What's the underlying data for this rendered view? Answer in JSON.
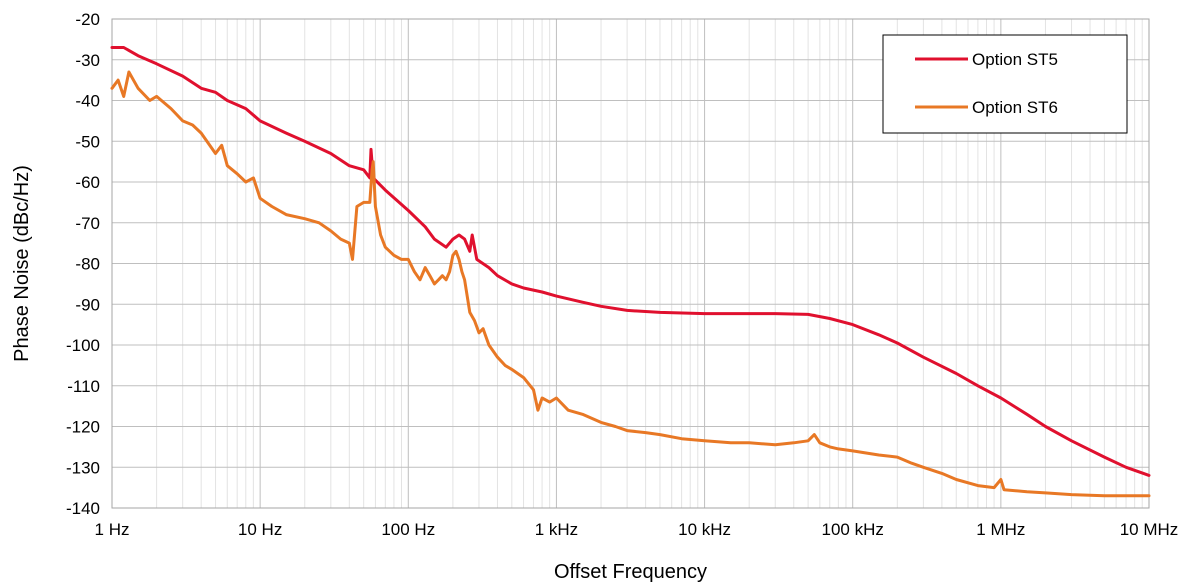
{
  "chart_data": {
    "type": "line",
    "title": "",
    "xlabel": "Offset Frequency",
    "ylabel": "Phase Noise (dBc/Hz)",
    "x_scale": "log",
    "xlim": [
      1,
      10000000
    ],
    "ylim": [
      -140,
      -20
    ],
    "x_ticks": [
      {
        "value": 1,
        "label": "1 Hz"
      },
      {
        "value": 10,
        "label": "10 Hz"
      },
      {
        "value": 100,
        "label": "100 Hz"
      },
      {
        "value": 1000,
        "label": "1 kHz"
      },
      {
        "value": 10000,
        "label": "10 kHz"
      },
      {
        "value": 100000,
        "label": "100 kHz"
      },
      {
        "value": 1000000,
        "label": "1 MHz"
      },
      {
        "value": 10000000,
        "label": "10 MHz"
      }
    ],
    "y_ticks": [
      -20,
      -30,
      -40,
      -50,
      -60,
      -70,
      -80,
      -90,
      -100,
      -110,
      -120,
      -130,
      -140
    ],
    "grid": true,
    "legend_position": "top-right",
    "series": [
      {
        "name": "Option ST5",
        "color": "#e0102e",
        "points": [
          [
            1,
            -27
          ],
          [
            1.2,
            -27
          ],
          [
            1.5,
            -29
          ],
          [
            2,
            -31
          ],
          [
            3,
            -34
          ],
          [
            4,
            -37
          ],
          [
            5,
            -38
          ],
          [
            6,
            -40
          ],
          [
            8,
            -42
          ],
          [
            10,
            -45
          ],
          [
            15,
            -48
          ],
          [
            20,
            -50
          ],
          [
            30,
            -53
          ],
          [
            40,
            -56
          ],
          [
            50,
            -57
          ],
          [
            55,
            -59
          ],
          [
            56,
            -52
          ],
          [
            58,
            -59
          ],
          [
            70,
            -62
          ],
          [
            100,
            -67
          ],
          [
            130,
            -71
          ],
          [
            150,
            -74
          ],
          [
            180,
            -76
          ],
          [
            200,
            -74
          ],
          [
            220,
            -73
          ],
          [
            240,
            -74
          ],
          [
            260,
            -77
          ],
          [
            270,
            -73
          ],
          [
            290,
            -79
          ],
          [
            350,
            -81
          ],
          [
            400,
            -83
          ],
          [
            500,
            -85
          ],
          [
            600,
            -86
          ],
          [
            800,
            -87
          ],
          [
            1000,
            -88
          ],
          [
            1500,
            -89.5
          ],
          [
            2000,
            -90.5
          ],
          [
            3000,
            -91.5
          ],
          [
            5000,
            -92
          ],
          [
            10000,
            -92.3
          ],
          [
            20000,
            -92.3
          ],
          [
            30000,
            -92.3
          ],
          [
            50000,
            -92.5
          ],
          [
            70000,
            -93.5
          ],
          [
            100000,
            -95
          ],
          [
            150000,
            -97.5
          ],
          [
            200000,
            -99.5
          ],
          [
            300000,
            -103
          ],
          [
            500000,
            -107
          ],
          [
            700000,
            -110
          ],
          [
            1000000,
            -113
          ],
          [
            1500000,
            -117
          ],
          [
            2000000,
            -120
          ],
          [
            3000000,
            -123.5
          ],
          [
            5000000,
            -127.5
          ],
          [
            7000000,
            -130
          ],
          [
            10000000,
            -132
          ]
        ]
      },
      {
        "name": "Option ST6",
        "color": "#e87825",
        "points": [
          [
            1,
            -37
          ],
          [
            1.1,
            -35
          ],
          [
            1.2,
            -39
          ],
          [
            1.3,
            -33
          ],
          [
            1.5,
            -37
          ],
          [
            1.8,
            -40
          ],
          [
            2,
            -39
          ],
          [
            2.5,
            -42
          ],
          [
            3,
            -45
          ],
          [
            3.5,
            -46
          ],
          [
            4,
            -48
          ],
          [
            5,
            -53
          ],
          [
            5.5,
            -51
          ],
          [
            6,
            -56
          ],
          [
            7,
            -58
          ],
          [
            8,
            -60
          ],
          [
            9,
            -59
          ],
          [
            10,
            -64
          ],
          [
            12,
            -66
          ],
          [
            15,
            -68
          ],
          [
            20,
            -69
          ],
          [
            25,
            -70
          ],
          [
            30,
            -72
          ],
          [
            35,
            -74
          ],
          [
            40,
            -75
          ],
          [
            42,
            -79
          ],
          [
            45,
            -66
          ],
          [
            50,
            -65
          ],
          [
            52,
            -65
          ],
          [
            55,
            -65
          ],
          [
            57,
            -57
          ],
          [
            58,
            -55
          ],
          [
            60,
            -66
          ],
          [
            65,
            -73
          ],
          [
            70,
            -76
          ],
          [
            80,
            -78
          ],
          [
            90,
            -79
          ],
          [
            100,
            -79
          ],
          [
            110,
            -82
          ],
          [
            120,
            -84
          ],
          [
            130,
            -81
          ],
          [
            140,
            -83
          ],
          [
            150,
            -85
          ],
          [
            160,
            -84
          ],
          [
            170,
            -83
          ],
          [
            180,
            -84
          ],
          [
            190,
            -82
          ],
          [
            200,
            -78
          ],
          [
            210,
            -77
          ],
          [
            220,
            -79
          ],
          [
            230,
            -82
          ],
          [
            240,
            -84
          ],
          [
            250,
            -88
          ],
          [
            260,
            -92
          ],
          [
            280,
            -94
          ],
          [
            300,
            -97
          ],
          [
            320,
            -96
          ],
          [
            350,
            -100
          ],
          [
            400,
            -103
          ],
          [
            450,
            -105
          ],
          [
            500,
            -106
          ],
          [
            600,
            -108
          ],
          [
            700,
            -111
          ],
          [
            750,
            -116
          ],
          [
            800,
            -113
          ],
          [
            900,
            -114
          ],
          [
            1000,
            -113
          ],
          [
            1200,
            -116
          ],
          [
            1500,
            -117
          ],
          [
            2000,
            -119
          ],
          [
            2500,
            -120
          ],
          [
            3000,
            -121
          ],
          [
            4000,
            -121.5
          ],
          [
            5000,
            -122
          ],
          [
            7000,
            -123
          ],
          [
            10000,
            -123.5
          ],
          [
            15000,
            -124
          ],
          [
            20000,
            -124
          ],
          [
            30000,
            -124.5
          ],
          [
            40000,
            -124
          ],
          [
            50000,
            -123.5
          ],
          [
            55000,
            -122
          ],
          [
            60000,
            -124
          ],
          [
            70000,
            -125
          ],
          [
            80000,
            -125.5
          ],
          [
            100000,
            -126
          ],
          [
            150000,
            -127
          ],
          [
            200000,
            -127.5
          ],
          [
            250000,
            -129
          ],
          [
            300000,
            -130
          ],
          [
            400000,
            -131.5
          ],
          [
            500000,
            -133
          ],
          [
            700000,
            -134.5
          ],
          [
            900000,
            -135
          ],
          [
            1000000,
            -133
          ],
          [
            1050000,
            -135.5
          ],
          [
            1500000,
            -136
          ],
          [
            2000000,
            -136.3
          ],
          [
            3000000,
            -136.7
          ],
          [
            5000000,
            -137
          ],
          [
            7000000,
            -137
          ],
          [
            10000000,
            -137
          ]
        ]
      }
    ]
  }
}
